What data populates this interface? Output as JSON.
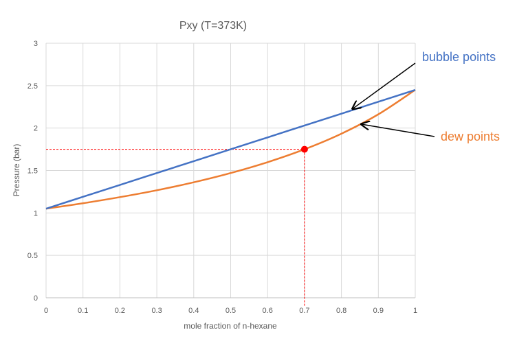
{
  "chart_data": {
    "type": "line",
    "title": "Pxy (T=373K)",
    "xlabel": "mole fraction of n-hexane",
    "ylabel": "Pressure (bar)",
    "xlim": [
      0,
      1
    ],
    "ylim": [
      0,
      3
    ],
    "x_ticks": [
      "0",
      "0.1",
      "0.2",
      "0.3",
      "0.4",
      "0.5",
      "0.6",
      "0.7",
      "0.8",
      "0.9",
      "1"
    ],
    "y_ticks": [
      "0",
      "0.5",
      "1",
      "1.5",
      "2",
      "2.5",
      "3"
    ],
    "grid": true,
    "x": [
      0,
      0.1,
      0.2,
      0.3,
      0.4,
      0.5,
      0.6,
      0.7,
      0.8,
      0.9,
      1
    ],
    "series": [
      {
        "name": "bubble points",
        "color": "#4472C4",
        "values": [
          1.05,
          1.19,
          1.33,
          1.47,
          1.61,
          1.75,
          1.89,
          2.03,
          2.17,
          2.31,
          2.45
        ]
      },
      {
        "name": "dew points",
        "color": "#ED7D31",
        "values": [
          1.05,
          1.114,
          1.186,
          1.267,
          1.361,
          1.47,
          1.598,
          1.75,
          1.934,
          2.162,
          2.45
        ]
      }
    ],
    "marker": {
      "x": 0.7,
      "y": 1.75,
      "color": "#FF0000"
    },
    "annotations": [
      {
        "text": "bubble points",
        "color": "#4472C4",
        "points_to": [
          0.83,
          2.21
        ]
      },
      {
        "text": "dew points",
        "color": "#ED7D31",
        "points_to": [
          0.85,
          2.03
        ]
      }
    ]
  }
}
